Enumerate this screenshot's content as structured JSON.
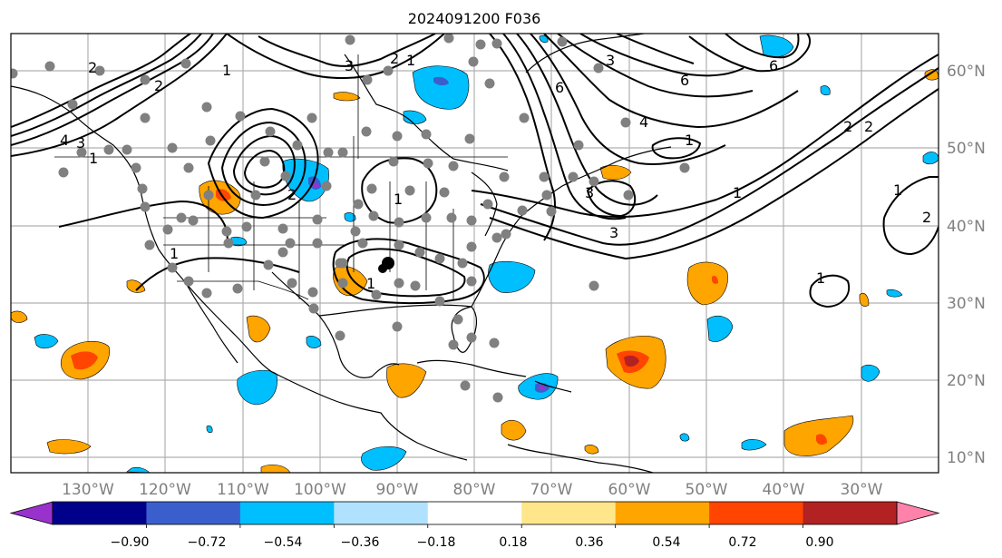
{
  "title": "2024091200 F036",
  "lon_labels": [
    "130°W",
    "120°W",
    "110°W",
    "100°W",
    "90°W",
    "80°W",
    "70°W",
    "60°W",
    "50°W",
    "40°W",
    "30°W"
  ],
  "lat_labels": [
    "60°N",
    "50°N",
    "40°N",
    "30°N",
    "20°N",
    "10°N"
  ],
  "colorbar": {
    "ticks": [
      "−0.90",
      "−0.72",
      "−0.54",
      "−0.36",
      "−0.18",
      "0.18",
      "0.36",
      "0.54",
      "0.72",
      "0.90"
    ],
    "colors": [
      "#9932cc",
      "#00008b",
      "#3a5fcd",
      "#00bfff",
      "#b0e2ff",
      "#ffffff",
      "#ffe68a",
      "#ffa500",
      "#ff4500",
      "#b22222",
      "#ff82ab"
    ]
  },
  "contour_labels": [
    "1",
    "2",
    "3",
    "4",
    "6"
  ],
  "contour_color": "#000000",
  "station_color": "#808080"
}
